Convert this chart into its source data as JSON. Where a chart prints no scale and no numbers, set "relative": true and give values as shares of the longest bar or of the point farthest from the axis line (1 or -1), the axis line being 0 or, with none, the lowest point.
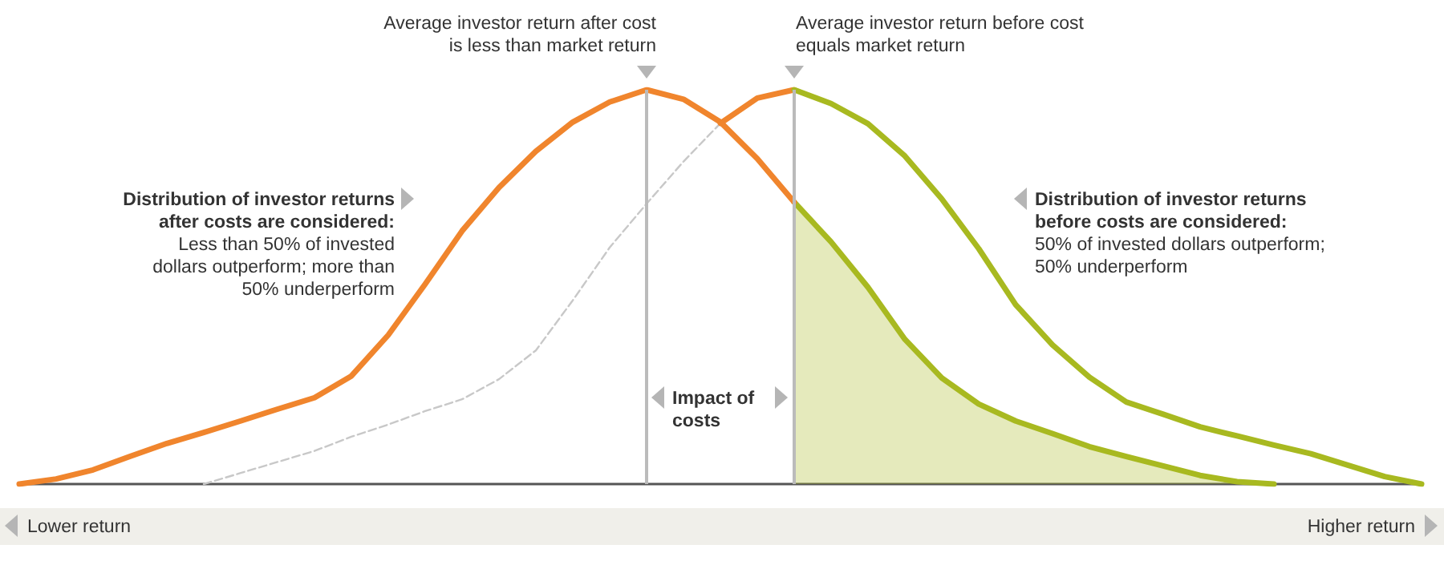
{
  "chart_data": {
    "type": "line",
    "relative": true,
    "marker": "none",
    "categories": [
      null,
      null,
      null,
      null,
      null,
      null,
      null,
      null,
      null,
      null,
      null,
      null,
      null,
      null,
      null,
      null,
      null,
      null,
      null,
      null,
      null,
      null,
      null,
      null,
      null,
      null,
      null,
      null,
      null,
      null,
      null,
      null,
      null,
      null,
      null,
      null,
      null,
      null,
      null
    ],
    "series": [
      {
        "color": "#f0852d",
        "values": [
          0,
          0.013,
          0.036,
          0.07,
          0.103,
          0.131,
          0.16,
          0.19,
          0.219,
          0.274,
          0.378,
          0.507,
          0.642,
          0.752,
          0.844,
          0.918,
          0.969,
          1,
          0.976,
          0.918,
          0.825,
          0.715,
          null,
          null,
          null,
          null,
          null,
          null,
          null,
          null,
          null,
          null,
          null,
          null,
          null,
          null,
          null,
          null,
          null
        ]
      },
      {
        "type": "area",
        "color": "#a8b920",
        "values": [
          null,
          null,
          null,
          null,
          null,
          null,
          null,
          null,
          null,
          null,
          null,
          null,
          null,
          null,
          null,
          null,
          null,
          null,
          null,
          null,
          null,
          0.715,
          0.614,
          0.499,
          0.367,
          0.269,
          0.203,
          0.16,
          0.128,
          0.095,
          0.07,
          0.046,
          0.022,
          0.006,
          0,
          null,
          null,
          null,
          null
        ]
      },
      {
        "color": "#c8c8c8",
        "line_style": "dashed",
        "values": [
          null,
          null,
          null,
          null,
          null,
          0,
          0.028,
          0.056,
          0.084,
          0.12,
          0.151,
          0.185,
          0.215,
          0.266,
          0.339,
          0.466,
          0.6,
          0.711,
          0.818,
          0.915,
          null,
          null,
          null,
          null,
          null,
          null,
          null,
          null,
          null,
          null,
          null,
          null,
          null,
          null,
          null,
          null,
          null,
          null,
          null
        ]
      },
      {
        "color": "#f0852d",
        "values": [
          null,
          null,
          null,
          null,
          null,
          null,
          null,
          null,
          null,
          null,
          null,
          null,
          null,
          null,
          null,
          null,
          null,
          null,
          null,
          0.915,
          0.979,
          1,
          null,
          null,
          null,
          null,
          null,
          null,
          null,
          null,
          null,
          null,
          null,
          null,
          null,
          null,
          null,
          null,
          null
        ]
      },
      {
        "color": "#a8b920",
        "values": [
          null,
          null,
          null,
          null,
          null,
          null,
          null,
          null,
          null,
          null,
          null,
          null,
          null,
          null,
          null,
          null,
          null,
          null,
          null,
          null,
          null,
          1,
          0.965,
          0.914,
          0.832,
          0.723,
          0.597,
          0.455,
          0.353,
          0.271,
          0.208,
          0.177,
          0.145,
          0.122,
          0.099,
          0.077,
          0.048,
          0.019,
          0
        ]
      }
    ],
    "annotations": [
      "Average investor return after cost\nis less than market return",
      "Average investor return before cost\nequals market return",
      "Distribution of investor returns\nafter costs are considered:",
      "Less than 50% of invested\ndollars outperform; more than\n50% underperform",
      "Distribution of investor returns\nbefore costs are considered:",
      "50% of invested dollars outperform;\n50% underperform",
      "Impact of\ncosts",
      "Lower return",
      "Higher return"
    ]
  }
}
